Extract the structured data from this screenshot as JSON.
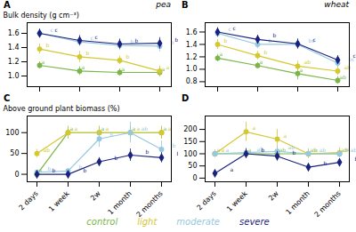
{
  "chart_data": [
    {
      "type": "line",
      "title": "A",
      "subtitle": "pea",
      "y_label": "Bulk density (g cm⁻³)",
      "categories": [
        null,
        null,
        null,
        null
      ],
      "ylim": [
        0.85,
        1.75
      ],
      "yticks": [
        {
          "value": 1.0,
          "label": "1.0"
        },
        1.2,
        1.4,
        1.6
      ],
      "legend": "bottom",
      "series": [
        {
          "name": "control",
          "color": "#7ab648",
          "marker": "circle",
          "values": [
            1.15,
            1.07,
            1.05,
            1.05
          ],
          "errors": [
            0.05,
            0.06,
            0.05,
            0.06
          ],
          "annotations": [
            "a",
            "a",
            "a",
            "a"
          ]
        },
        {
          "name": "light",
          "color": "#d4c832",
          "marker": "circle",
          "values": [
            1.38,
            1.27,
            1.22,
            1.07
          ],
          "errors": [
            0.07,
            0.08,
            0.06,
            0.07
          ],
          "annotations": [
            "b",
            "b",
            "b",
            "a"
          ]
        },
        {
          "name": "moderate",
          "color": "#96c8e0",
          "marker": "circle",
          "values": [
            1.6,
            1.48,
            1.43,
            1.42
          ],
          "errors": [
            0.06,
            0.06,
            0.07,
            0.08
          ],
          "annotations": [
            "c",
            "c",
            "b",
            "b"
          ]
        },
        {
          "name": "severe",
          "color": "#1a237e",
          "marker": "diamond",
          "values": [
            1.6,
            1.5,
            1.45,
            1.46
          ],
          "errors": [
            0.06,
            0.07,
            0.07,
            0.08
          ],
          "annotations": [
            "c",
            "c",
            "b",
            "b"
          ]
        }
      ]
    },
    {
      "type": "line",
      "title": "B",
      "subtitle": "wheat",
      "categories": [
        null,
        null,
        null,
        null
      ],
      "ylim": [
        0.72,
        1.75
      ],
      "yticks": [
        0.8,
        {
          "value": 1.0,
          "label": "1.0"
        },
        1.2,
        1.4,
        1.6
      ],
      "series": [
        {
          "name": "control",
          "color": "#7ab648",
          "marker": "circle",
          "values": [
            1.18,
            1.06,
            0.93,
            0.82
          ],
          "errors": [
            0.06,
            0.05,
            0.1,
            0.06
          ],
          "annotations": [
            "a",
            "a",
            "a",
            "ab"
          ]
        },
        {
          "name": "light",
          "color": "#d4c832",
          "marker": "circle",
          "values": [
            1.4,
            1.22,
            1.05,
            0.97
          ],
          "errors": [
            0.08,
            0.07,
            0.08,
            0.07
          ],
          "annotations": [
            "b",
            "b",
            "ab",
            "ab"
          ]
        },
        {
          "name": "moderate",
          "color": "#96c8e0",
          "marker": "circle",
          "values": [
            1.58,
            1.4,
            1.4,
            1.1
          ],
          "errors": [
            0.07,
            0.07,
            0.08,
            0.07
          ],
          "annotations": [
            "c",
            "b",
            "bc",
            "bc"
          ]
        },
        {
          "name": "severe",
          "color": "#1a237e",
          "marker": "diamond",
          "values": [
            1.6,
            1.48,
            1.41,
            1.15
          ],
          "errors": [
            0.07,
            0.07,
            0.08,
            0.07
          ],
          "annotations": [
            "c",
            "b",
            "c",
            "c"
          ]
        }
      ]
    },
    {
      "type": "line",
      "title": "C",
      "y_label": "Above ground plant biomass (%)",
      "categories": [
        "2 days",
        "1 week",
        "2w",
        "1 month",
        "2 months"
      ],
      "ylim": [
        -18,
        140
      ],
      "yticks": [
        0,
        50,
        100
      ],
      "series": [
        {
          "name": "control",
          "color": "#7ab648",
          "marker": "circle",
          "values": [
            0,
            100,
            100,
            100,
            100
          ],
          "errors": [
            2,
            15,
            15,
            15,
            15
          ],
          "annotations": [
            "a",
            "a",
            "a",
            "a",
            "a"
          ]
        },
        {
          "name": "light",
          "color": "#d4c832",
          "marker": "circle",
          "values": [
            50,
            100,
            100,
            100,
            100
          ],
          "errors": [
            10,
            15,
            15,
            15,
            15
          ],
          "annotations": [
            "ab",
            "a",
            "a",
            "a",
            "a"
          ]
        },
        {
          "name": "moderate",
          "color": "#96c8e0",
          "marker": "circle",
          "values": [
            5,
            8,
            85,
            100,
            60
          ],
          "errors": [
            3,
            5,
            20,
            25,
            20
          ],
          "annotations": [
            "b",
            "b",
            "b",
            "ab",
            "b"
          ]
        },
        {
          "name": "severe",
          "color": "#1a237e",
          "marker": "diamond",
          "values": [
            0,
            0,
            30,
            46,
            40
          ],
          "errors": [
            2,
            2,
            10,
            15,
            12
          ],
          "annotations": [
            "b",
            "b",
            "b",
            "b",
            "b"
          ]
        }
      ]
    },
    {
      "type": "line",
      "title": "D",
      "categories": [
        "2 days",
        "1 week",
        "2w",
        "1 month",
        "2 months"
      ],
      "ylim": [
        -15,
        255
      ],
      "yticks": [
        0,
        50,
        100,
        150,
        200
      ],
      "series": [
        {
          "name": "control",
          "color": "#7ab648",
          "marker": "circle",
          "values": [
            100,
            100,
            100,
            100,
            100
          ],
          "errors": [
            10,
            15,
            15,
            15,
            15
          ],
          "annotations": [
            "a",
            "a",
            "ab",
            "ab",
            "ab"
          ]
        },
        {
          "name": "light",
          "color": "#d4c832",
          "marker": "circle",
          "values": [
            100,
            190,
            160,
            100,
            105
          ],
          "errors": [
            15,
            40,
            40,
            20,
            20
          ],
          "annotations": [
            "a",
            "a",
            "a",
            "a",
            "a"
          ]
        },
        {
          "name": "moderate",
          "color": "#96c8e0",
          "marker": "circle",
          "values": [
            100,
            105,
            110,
            100,
            100
          ],
          "errors": [
            15,
            20,
            20,
            15,
            15
          ],
          "annotations": [
            "a",
            "ab",
            "ab",
            "ab",
            "ab"
          ]
        },
        {
          "name": "severe",
          "color": "#1a237e",
          "marker": "diamond",
          "values": [
            20,
            100,
            90,
            45,
            65
          ],
          "errors": [
            10,
            20,
            20,
            15,
            15
          ],
          "annotations": [
            "a",
            "b",
            "b",
            "b",
            "b"
          ]
        }
      ]
    }
  ]
}
